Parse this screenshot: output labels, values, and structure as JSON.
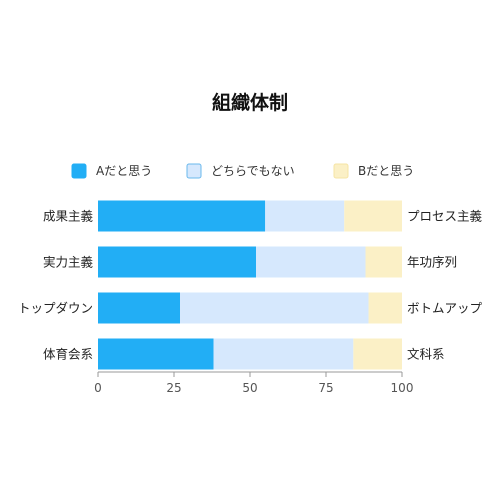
{
  "chart_data": {
    "type": "bar",
    "orientation": "horizontal",
    "stacked": true,
    "title": "組織体制",
    "left_categories": [
      "成果主義",
      "実力主義",
      "トップダウン",
      "体育会系"
    ],
    "right_categories": [
      "プロセス主義",
      "年功序列",
      "ボトムアップ",
      "文科系"
    ],
    "series": [
      {
        "name": "Aだと思う",
        "values": [
          55,
          52,
          27,
          38
        ]
      },
      {
        "name": "どちらでもない",
        "values": [
          26,
          36,
          62,
          46
        ]
      },
      {
        "name": "Bだと思う",
        "values": [
          19,
          12,
          11,
          16
        ]
      }
    ],
    "xlim": [
      0,
      100
    ],
    "xticks": [
      "0",
      "25",
      "50",
      "75",
      "100"
    ],
    "legend_position": "top",
    "grid": false,
    "colors": {
      "series": [
        "#22aef5",
        "#d6e8fd",
        "#fbf0c6"
      ],
      "legend_swatch_borders": [
        "#22aef5",
        "#6ab8ec",
        "#f6e4a4"
      ],
      "axis": "#999999"
    }
  }
}
